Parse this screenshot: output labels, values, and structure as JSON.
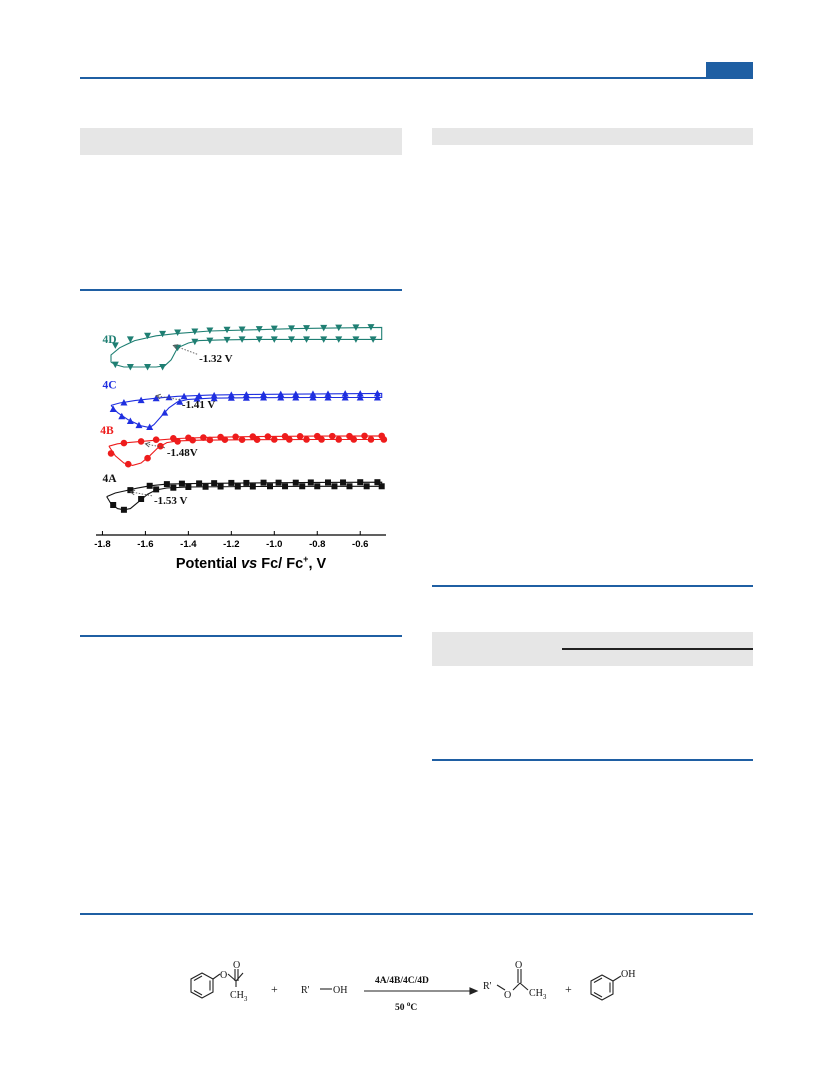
{
  "header": {
    "accent_color": "#1f5fa3"
  },
  "chart_data": {
    "type": "line",
    "xlabel_parts": [
      "Potential ",
      "vs",
      " Fc/ Fc",
      "+",
      ", V"
    ],
    "xlim": [
      -1.83,
      -0.48
    ],
    "ticks": [
      -1.8,
      -1.6,
      -1.4,
      -1.2,
      -1.0,
      -0.8,
      -0.6
    ],
    "tick_labels": [
      "-1.8",
      "-1.6",
      "-1.4",
      "-1.2",
      "-1.0",
      "-0.8",
      "-0.6"
    ],
    "y_axis_shown": false,
    "series": [
      {
        "name": "4D",
        "color": "#1f7f73",
        "marker": "triangle-down",
        "annotation": "-1.32 V",
        "onset_potential": -1.32,
        "curve": [
          [
            -1.76,
            0.72
          ],
          [
            -1.74,
            0.71
          ],
          [
            -1.7,
            0.7
          ],
          [
            -1.65,
            0.7
          ],
          [
            -1.6,
            0.7
          ],
          [
            -1.55,
            0.7
          ],
          [
            -1.51,
            0.705
          ],
          [
            -1.48,
            0.73
          ],
          [
            -1.45,
            0.78
          ],
          [
            -1.4,
            0.8
          ],
          [
            -1.35,
            0.81
          ],
          [
            -1.25,
            0.813
          ],
          [
            -1.1,
            0.815
          ],
          [
            -0.9,
            0.815
          ],
          [
            -0.7,
            0.815
          ],
          [
            -0.5,
            0.815
          ],
          [
            -0.5,
            0.865
          ],
          [
            -0.7,
            0.863
          ],
          [
            -0.9,
            0.86
          ],
          [
            -1.1,
            0.855
          ],
          [
            -1.3,
            0.85
          ],
          [
            -1.45,
            0.84
          ],
          [
            -1.55,
            0.83
          ],
          [
            -1.65,
            0.81
          ],
          [
            -1.72,
            0.78
          ],
          [
            -1.76,
            0.75
          ],
          [
            -1.76,
            0.72
          ]
        ],
        "markers": [
          [
            -1.74,
            0.71
          ],
          [
            -1.67,
            0.7
          ],
          [
            -1.59,
            0.7
          ],
          [
            -1.52,
            0.7
          ],
          [
            -1.45,
            0.78
          ],
          [
            -1.37,
            0.805
          ],
          [
            -1.3,
            0.81
          ],
          [
            -1.22,
            0.813
          ],
          [
            -1.15,
            0.815
          ],
          [
            -1.07,
            0.815
          ],
          [
            -1.0,
            0.815
          ],
          [
            -0.92,
            0.815
          ],
          [
            -0.85,
            0.815
          ],
          [
            -0.77,
            0.815
          ],
          [
            -0.7,
            0.815
          ],
          [
            -0.62,
            0.815
          ],
          [
            -0.54,
            0.815
          ],
          [
            -1.74,
            0.79
          ],
          [
            -1.67,
            0.815
          ],
          [
            -1.59,
            0.83
          ],
          [
            -1.52,
            0.838
          ],
          [
            -1.45,
            0.844
          ],
          [
            -1.37,
            0.848
          ],
          [
            -1.3,
            0.852
          ],
          [
            -1.22,
            0.855
          ],
          [
            -1.15,
            0.856
          ],
          [
            -1.07,
            0.858
          ],
          [
            -1.0,
            0.86
          ],
          [
            -0.92,
            0.861
          ],
          [
            -0.85,
            0.862
          ],
          [
            -0.77,
            0.863
          ],
          [
            -0.7,
            0.864
          ],
          [
            -0.62,
            0.865
          ],
          [
            -0.55,
            0.866
          ]
        ]
      },
      {
        "name": "4C",
        "color": "#1f2fe0",
        "marker": "triangle-up",
        "annotation": "-1.41 V",
        "onset_potential": -1.41,
        "curve": [
          [
            -1.76,
            0.54
          ],
          [
            -1.73,
            0.51
          ],
          [
            -1.68,
            0.48
          ],
          [
            -1.62,
            0.455
          ],
          [
            -1.58,
            0.448
          ],
          [
            -1.56,
            0.46
          ],
          [
            -1.53,
            0.49
          ],
          [
            -1.49,
            0.53
          ],
          [
            -1.45,
            0.555
          ],
          [
            -1.4,
            0.565
          ],
          [
            -1.3,
            0.57
          ],
          [
            -1.1,
            0.572
          ],
          [
            -0.8,
            0.573
          ],
          [
            -0.5,
            0.573
          ],
          [
            -0.5,
            0.59
          ],
          [
            -0.8,
            0.588
          ],
          [
            -1.1,
            0.586
          ],
          [
            -1.3,
            0.583
          ],
          [
            -1.45,
            0.578
          ],
          [
            -1.55,
            0.57
          ],
          [
            -1.65,
            0.56
          ],
          [
            -1.72,
            0.55
          ],
          [
            -1.76,
            0.54
          ]
        ],
        "markers": [
          [
            -1.75,
            0.525
          ],
          [
            -1.71,
            0.495
          ],
          [
            -1.67,
            0.475
          ],
          [
            -1.63,
            0.458
          ],
          [
            -1.58,
            0.45
          ],
          [
            -1.51,
            0.51
          ],
          [
            -1.44,
            0.555
          ],
          [
            -1.36,
            0.568
          ],
          [
            -1.28,
            0.57
          ],
          [
            -1.2,
            0.572
          ],
          [
            -1.13,
            0.572
          ],
          [
            -1.05,
            0.573
          ],
          [
            -0.97,
            0.573
          ],
          [
            -0.9,
            0.573
          ],
          [
            -0.82,
            0.573
          ],
          [
            -0.75,
            0.573
          ],
          [
            -0.67,
            0.573
          ],
          [
            -0.6,
            0.573
          ],
          [
            -0.52,
            0.573
          ],
          [
            -1.7,
            0.552
          ],
          [
            -1.62,
            0.562
          ],
          [
            -1.55,
            0.57
          ],
          [
            -1.49,
            0.574
          ],
          [
            -1.42,
            0.578
          ],
          [
            -1.35,
            0.58
          ],
          [
            -1.28,
            0.582
          ],
          [
            -1.2,
            0.584
          ],
          [
            -1.13,
            0.585
          ],
          [
            -1.05,
            0.586
          ],
          [
            -0.97,
            0.587
          ],
          [
            -0.9,
            0.587
          ],
          [
            -0.82,
            0.588
          ],
          [
            -0.75,
            0.588
          ],
          [
            -0.67,
            0.589
          ],
          [
            -0.6,
            0.589
          ],
          [
            -0.52,
            0.59
          ]
        ]
      },
      {
        "name": "4B",
        "color": "#ee1c1c",
        "marker": "circle",
        "annotation": "-1.48V",
        "onset_potential": -1.48,
        "curve": [
          [
            -1.77,
            0.37
          ],
          [
            -1.74,
            0.33
          ],
          [
            -1.7,
            0.3
          ],
          [
            -1.66,
            0.29
          ],
          [
            -1.62,
            0.3
          ],
          [
            -1.58,
            0.33
          ],
          [
            -1.54,
            0.365
          ],
          [
            -1.5,
            0.385
          ],
          [
            -1.45,
            0.392
          ],
          [
            -1.35,
            0.395
          ],
          [
            -1.1,
            0.397
          ],
          [
            -0.8,
            0.398
          ],
          [
            -0.5,
            0.398
          ],
          [
            -0.5,
            0.413
          ],
          [
            -0.8,
            0.412
          ],
          [
            -1.1,
            0.41
          ],
          [
            -1.3,
            0.407
          ],
          [
            -1.45,
            0.402
          ],
          [
            -1.55,
            0.395
          ],
          [
            -1.62,
            0.39
          ],
          [
            -1.68,
            0.385
          ],
          [
            -1.73,
            0.38
          ],
          [
            -1.77,
            0.37
          ]
        ],
        "markers": [
          [
            -1.76,
            0.34
          ],
          [
            -1.68,
            0.295
          ],
          [
            -1.59,
            0.32
          ],
          [
            -1.53,
            0.37
          ],
          [
            -1.45,
            0.39
          ],
          [
            -1.38,
            0.395
          ],
          [
            -1.3,
            0.396
          ],
          [
            -1.23,
            0.397
          ],
          [
            -1.15,
            0.397
          ],
          [
            -1.08,
            0.397
          ],
          [
            -1.0,
            0.398
          ],
          [
            -0.93,
            0.398
          ],
          [
            -0.85,
            0.398
          ],
          [
            -0.78,
            0.398
          ],
          [
            -0.7,
            0.398
          ],
          [
            -0.63,
            0.398
          ],
          [
            -0.55,
            0.398
          ],
          [
            -0.49,
            0.398
          ],
          [
            -1.7,
            0.383
          ],
          [
            -1.62,
            0.39
          ],
          [
            -1.55,
            0.397
          ],
          [
            -1.47,
            0.403
          ],
          [
            -1.4,
            0.405
          ],
          [
            -1.33,
            0.406
          ],
          [
            -1.25,
            0.408
          ],
          [
            -1.18,
            0.409
          ],
          [
            -1.1,
            0.41
          ],
          [
            -1.03,
            0.41
          ],
          [
            -0.95,
            0.411
          ],
          [
            -0.88,
            0.411
          ],
          [
            -0.8,
            0.412
          ],
          [
            -0.73,
            0.412
          ],
          [
            -0.65,
            0.412
          ],
          [
            -0.58,
            0.413
          ],
          [
            -0.5,
            0.413
          ]
        ]
      },
      {
        "name": "4A",
        "color": "#111111",
        "marker": "square",
        "annotation": "-1.53 V",
        "onset_potential": -1.53,
        "curve": [
          [
            -1.78,
            0.16
          ],
          [
            -1.76,
            0.13
          ],
          [
            -1.73,
            0.11
          ],
          [
            -1.7,
            0.105
          ],
          [
            -1.67,
            0.11
          ],
          [
            -1.63,
            0.14
          ],
          [
            -1.59,
            0.17
          ],
          [
            -1.55,
            0.188
          ],
          [
            -1.5,
            0.196
          ],
          [
            -1.4,
            0.2
          ],
          [
            -1.1,
            0.202
          ],
          [
            -0.8,
            0.203
          ],
          [
            -0.5,
            0.203
          ],
          [
            -0.5,
            0.22
          ],
          [
            -0.8,
            0.219
          ],
          [
            -1.1,
            0.217
          ],
          [
            -1.35,
            0.215
          ],
          [
            -1.5,
            0.212
          ],
          [
            -1.58,
            0.205
          ],
          [
            -1.64,
            0.195
          ],
          [
            -1.69,
            0.185
          ],
          [
            -1.74,
            0.175
          ],
          [
            -1.78,
            0.16
          ]
        ],
        "markers": [
          [
            -1.75,
            0.125
          ],
          [
            -1.7,
            0.105
          ],
          [
            -1.62,
            0.15
          ],
          [
            -1.55,
            0.19
          ],
          [
            -1.47,
            0.197
          ],
          [
            -1.4,
            0.2
          ],
          [
            -1.32,
            0.201
          ],
          [
            -1.25,
            0.202
          ],
          [
            -1.17,
            0.202
          ],
          [
            -1.1,
            0.202
          ],
          [
            -1.02,
            0.203
          ],
          [
            -0.95,
            0.203
          ],
          [
            -0.87,
            0.203
          ],
          [
            -0.8,
            0.203
          ],
          [
            -0.72,
            0.203
          ],
          [
            -0.65,
            0.203
          ],
          [
            -0.57,
            0.203
          ],
          [
            -0.5,
            0.203
          ],
          [
            -1.67,
            0.187
          ],
          [
            -1.58,
            0.205
          ],
          [
            -1.5,
            0.212
          ],
          [
            -1.43,
            0.214
          ],
          [
            -1.35,
            0.215
          ],
          [
            -1.28,
            0.216
          ],
          [
            -1.2,
            0.217
          ],
          [
            -1.13,
            0.217
          ],
          [
            -1.05,
            0.218
          ],
          [
            -0.98,
            0.218
          ],
          [
            -0.9,
            0.218
          ],
          [
            -0.83,
            0.219
          ],
          [
            -0.75,
            0.219
          ],
          [
            -0.68,
            0.219
          ],
          [
            -0.6,
            0.22
          ],
          [
            -0.52,
            0.22
          ]
        ]
      }
    ]
  },
  "scheme": {
    "reactant_ch3": "CH",
    "reactant_ch3_sub": "3",
    "reactant_o_ester": "O",
    "reactant_o_carbonyl": "O",
    "plus1": "+",
    "alcohol_r": "R'",
    "alcohol_oh": "OH",
    "arrow_top": "4A/4B/4C/4D",
    "arrow_bottom_num": "50 ",
    "arrow_bottom_sup": "o",
    "arrow_bottom_unit": "C",
    "product_r": "R'",
    "product_o_ester": "O",
    "product_o_carbonyl": "O",
    "product_ch3": "CH",
    "product_ch3_sub": "3",
    "plus2": "+",
    "phenol_oh": "OH"
  }
}
